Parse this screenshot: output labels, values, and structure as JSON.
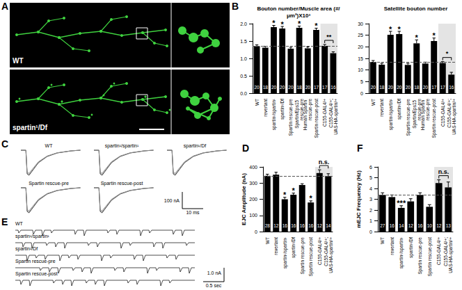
{
  "chart_data": [
    {
      "type": "bar",
      "panel": "B",
      "title": "Bouton number/Muscle area (#/μm²)X10³",
      "categories": [
        "WT",
        "revertant",
        "spartin¹/spartin¹",
        "spartin¹/Df",
        "Spartin rescue-pre",
        "Spartin/Eps15 rescue-pre",
        "Human Spartin rescue-pre",
        "Spartin rescue-post",
        "C155-GAL4/+",
        "C155-GAL4/+;UAS-HA-spartin/+"
      ],
      "values": [
        1.35,
        1.31,
        1.9,
        1.86,
        1.28,
        1.88,
        1.29,
        1.82,
        1.36,
        1.15
      ],
      "errors": [
        0.04,
        0.04,
        0.05,
        0.06,
        0.04,
        0.05,
        0.04,
        0.05,
        0.04,
        0.04
      ],
      "n": [
        20,
        18,
        20,
        20,
        20,
        18,
        20,
        17,
        17,
        16
      ],
      "significance": [
        null,
        null,
        "*",
        "*",
        null,
        "*",
        null,
        "*",
        null,
        null
      ],
      "bracket": {
        "from": 8,
        "to": 9,
        "label": "**"
      },
      "color": "#000000",
      "ylim": [
        0,
        2
      ],
      "yticks": [
        {
          "value": 0,
          "label": "0.0"
        },
        {
          "value": 0.5,
          "label": "0.5"
        },
        {
          "value": 1,
          "label": "1.0"
        },
        {
          "value": 1.5,
          "label": "1.5"
        },
        {
          "value": 2,
          "label": "2.0"
        }
      ],
      "grid": false
    },
    {
      "type": "bar",
      "title": "Satellite bouton number",
      "categories": [
        "WT",
        "revertant",
        "spartin¹/spartin¹",
        "spartin¹/Df",
        "Spartin rescue-pre",
        "Spartin/Eps15 rescue-pre",
        "Human Spartin rescue-pre",
        "Spartin rescue-post",
        "C155-GAL4/+",
        "C155-GAL4/+;UAS-HA-spartin/+"
      ],
      "values": [
        13.5,
        12.3,
        25.2,
        25.5,
        12.2,
        21.5,
        12.8,
        22.5,
        13.0,
        8.0
      ],
      "errors": [
        0.6,
        0.6,
        1.5,
        1.2,
        0.7,
        1.5,
        0.6,
        1.3,
        0.6,
        1.0
      ],
      "n": [
        20,
        18,
        20,
        20,
        20,
        18,
        20,
        17,
        17,
        16
      ],
      "significance": [
        null,
        null,
        "*",
        "*",
        null,
        "*",
        null,
        "*",
        null,
        null
      ],
      "bracket": {
        "from": 8,
        "to": 9,
        "label": "*"
      },
      "color": "#000000",
      "ylim": [
        0,
        30
      ],
      "yticks": [
        0,
        5,
        10,
        15,
        20,
        25,
        30
      ],
      "grid": false
    },
    {
      "type": "bar",
      "panel": "D",
      "y_label": "EJC Amplitude (nA)",
      "categories": [
        "WT",
        "revertant",
        "spartin¹/spartin¹",
        "spartin¹/Df",
        "Spartin rescue-pre",
        "Spartin rescue-post",
        "C155-GAL4/+",
        "C155-GAL4/+;UAS-HA-spartin/+"
      ],
      "values": [
        345,
        352,
        200,
        228,
        288,
        180,
        362,
        343
      ],
      "errors": [
        10,
        15,
        12,
        10,
        8,
        10,
        20,
        15
      ],
      "n": [
        28,
        12,
        16,
        16,
        16,
        16,
        12,
        14
      ],
      "significance": [
        null,
        null,
        "*",
        "*",
        null,
        "*",
        null,
        null
      ],
      "bracket": {
        "from": 6,
        "to": 7,
        "label": "n.s."
      },
      "color": "#000000",
      "ylim": [
        0,
        400
      ],
      "yticks": [
        0,
        100,
        200,
        300,
        400
      ],
      "grid": false
    },
    {
      "type": "bar",
      "panel": "F",
      "y_label": "mEJC Frequency (Hz)",
      "categories": [
        "WT",
        "revertant",
        "spartin¹/spartin¹",
        "spartin¹/Df",
        "Spartin rescue-pre",
        "Spartin rescue-post",
        "C155-GAL4/+",
        "C155-GAL4/+;UAS-HA-spartin/+"
      ],
      "values": [
        3.4,
        3.2,
        2.2,
        2.8,
        3.4,
        2.3,
        4.5,
        4.1
      ],
      "errors": [
        0.2,
        0.2,
        0.2,
        0.25,
        0.2,
        0.2,
        0.3,
        0.5
      ],
      "n": [
        27,
        16,
        14,
        12,
        16,
        10,
        12,
        13
      ],
      "significance": [
        null,
        null,
        "***",
        null,
        null,
        null,
        null,
        null
      ],
      "bracket": {
        "from": 6,
        "to": 7,
        "label": "n.s."
      },
      "color": "#000000",
      "ylim": [
        0,
        6
      ],
      "yticks": [
        0,
        1,
        2,
        3,
        4,
        5,
        6
      ],
      "grid": false
    }
  ],
  "images": {
    "panel": "A",
    "captions": [
      "WT",
      "spartin¹/Df"
    ]
  },
  "traces_evoked": {
    "panel": "C",
    "labels": [
      "WT",
      "spartin¹/spartin¹",
      "spartin¹/Df",
      "Spartin rescue-pre",
      "Spartin rescue-post"
    ],
    "scale_y": "100 nA",
    "scale_x": "10 ms"
  },
  "traces_mini": {
    "panel": "E",
    "labels": [
      "WT",
      "spartin¹/spartin¹",
      "spartin¹/Df",
      "Spartin rescue-pre",
      "Spartin rescue-post"
    ],
    "scale_y": "1.0 nA",
    "scale_x": "0.5 sec"
  }
}
